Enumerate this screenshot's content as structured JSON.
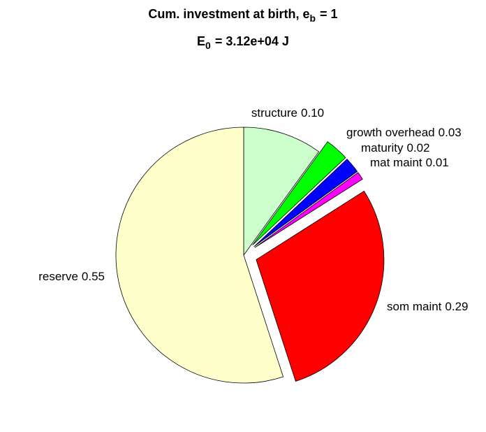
{
  "chart_data": {
    "type": "pie",
    "title": {
      "text": "Cum. investment at birth, e",
      "subscript": "b",
      "rest": "= 1"
    },
    "subtitle": {
      "text": "E",
      "subscript": "0",
      "rest": "= 3.12e+04 J"
    },
    "categories": [
      "structure",
      "growth overhead",
      "maturity",
      "mat maint",
      "som maint",
      "reserve"
    ],
    "values": [
      0.1,
      0.03,
      0.02,
      0.01,
      0.29,
      0.55
    ],
    "value_labels": [
      "0.10",
      "0.03",
      "0.02",
      "0.01",
      "0.29",
      "0.55"
    ],
    "colors": [
      "#ccffcc",
      "#00ff00",
      "#0000ff",
      "#ff00ff",
      "#ff0000",
      "#ffffcc"
    ],
    "explode": [
      false,
      true,
      true,
      true,
      true,
      false
    ]
  }
}
